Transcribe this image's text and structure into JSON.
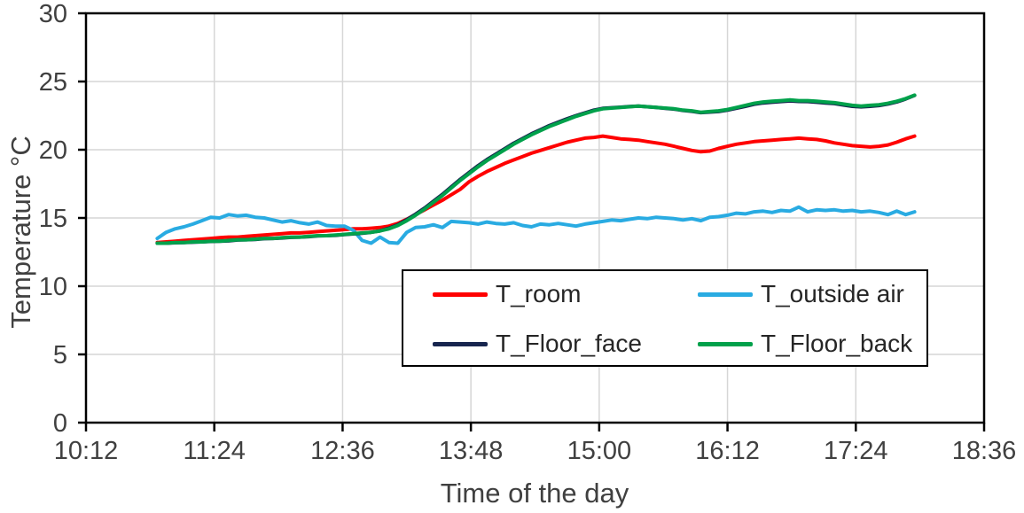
{
  "chart_data": {
    "type": "line",
    "title": "",
    "xlabel": "Time of the day",
    "ylabel": "Temperature °C",
    "ylim": [
      0,
      30
    ],
    "xlim": [
      "10:12",
      "18:36"
    ],
    "grid": true,
    "legend_position": "inside-bottom-center",
    "axis_color": "#000000",
    "grid_color": "#D6D6D6",
    "tick_label_color": "#404040",
    "x_ticks": [
      "10:12",
      "11:24",
      "12:36",
      "13:48",
      "15:00",
      "16:12",
      "17:24",
      "18:36"
    ],
    "y_ticks": [
      0,
      5,
      10,
      15,
      20,
      25,
      30
    ],
    "x": [
      "10:52",
      "10:57",
      "11:02",
      "11:07",
      "11:12",
      "11:17",
      "11:22",
      "11:27",
      "11:32",
      "11:37",
      "11:42",
      "11:47",
      "11:52",
      "11:57",
      "12:02",
      "12:07",
      "12:12",
      "12:17",
      "12:22",
      "12:27",
      "12:32",
      "12:37",
      "12:42",
      "12:47",
      "12:52",
      "12:57",
      "13:02",
      "13:07",
      "13:12",
      "13:17",
      "13:22",
      "13:27",
      "13:32",
      "13:37",
      "13:42",
      "13:47",
      "13:52",
      "13:57",
      "14:02",
      "14:07",
      "14:12",
      "14:17",
      "14:22",
      "14:27",
      "14:32",
      "14:37",
      "14:42",
      "14:47",
      "14:52",
      "14:57",
      "15:02",
      "15:07",
      "15:12",
      "15:17",
      "15:22",
      "15:27",
      "15:32",
      "15:37",
      "15:42",
      "15:47",
      "15:52",
      "15:57",
      "16:02",
      "16:07",
      "16:12",
      "16:17",
      "16:22",
      "16:27",
      "16:32",
      "16:37",
      "16:42",
      "16:47",
      "16:52",
      "16:57",
      "17:02",
      "17:07",
      "17:12",
      "17:17",
      "17:22",
      "17:27",
      "17:32",
      "17:37",
      "17:42",
      "17:47",
      "17:52",
      "17:57"
    ],
    "series": [
      {
        "name": "T_room",
        "color": "#FF0000",
        "values": [
          13.2,
          13.25,
          13.3,
          13.35,
          13.4,
          13.45,
          13.5,
          13.55,
          13.6,
          13.6,
          13.65,
          13.7,
          13.75,
          13.8,
          13.85,
          13.9,
          13.9,
          13.95,
          14.0,
          14.05,
          14.1,
          14.15,
          14.2,
          14.2,
          14.25,
          14.3,
          14.4,
          14.6,
          14.9,
          15.25,
          15.6,
          15.95,
          16.3,
          16.7,
          17.1,
          17.65,
          18.05,
          18.4,
          18.7,
          19.0,
          19.25,
          19.5,
          19.75,
          19.95,
          20.15,
          20.35,
          20.55,
          20.7,
          20.85,
          20.9,
          21.0,
          20.9,
          20.8,
          20.75,
          20.7,
          20.6,
          20.5,
          20.4,
          20.25,
          20.1,
          19.95,
          19.85,
          19.9,
          20.1,
          20.25,
          20.4,
          20.5,
          20.6,
          20.65,
          20.7,
          20.75,
          20.8,
          20.85,
          20.8,
          20.75,
          20.65,
          20.5,
          20.4,
          20.3,
          20.25,
          20.2,
          20.25,
          20.35,
          20.55,
          20.8,
          21.0
        ]
      },
      {
        "name": "T_outside air",
        "color": "#29ABE2",
        "values": [
          13.5,
          13.95,
          14.2,
          14.35,
          14.55,
          14.8,
          15.05,
          15.0,
          15.25,
          15.15,
          15.2,
          15.05,
          15.0,
          14.85,
          14.7,
          14.8,
          14.65,
          14.55,
          14.7,
          14.45,
          14.4,
          14.4,
          14.1,
          13.35,
          13.15,
          13.6,
          13.2,
          13.15,
          13.95,
          14.3,
          14.35,
          14.5,
          14.3,
          14.75,
          14.7,
          14.65,
          14.55,
          14.7,
          14.6,
          14.55,
          14.65,
          14.45,
          14.35,
          14.55,
          14.5,
          14.6,
          14.5,
          14.4,
          14.55,
          14.65,
          14.75,
          14.85,
          14.8,
          14.9,
          15.0,
          14.95,
          15.05,
          15.0,
          14.95,
          14.85,
          14.95,
          14.8,
          15.05,
          15.1,
          15.2,
          15.35,
          15.3,
          15.45,
          15.5,
          15.4,
          15.55,
          15.5,
          15.8,
          15.45,
          15.6,
          15.55,
          15.6,
          15.5,
          15.55,
          15.45,
          15.5,
          15.4,
          15.25,
          15.5,
          15.25,
          15.45
        ]
      },
      {
        "name": "T_Floor_face",
        "color": "#17254E",
        "values": [
          13.15,
          13.15,
          13.18,
          13.2,
          13.22,
          13.25,
          13.28,
          13.3,
          13.32,
          13.38,
          13.4,
          13.43,
          13.48,
          13.5,
          13.53,
          13.58,
          13.6,
          13.63,
          13.68,
          13.7,
          13.73,
          13.78,
          13.83,
          13.88,
          13.95,
          14.05,
          14.25,
          14.5,
          14.87,
          15.28,
          15.73,
          16.23,
          16.73,
          17.28,
          17.83,
          18.33,
          18.83,
          19.28,
          19.68,
          20.08,
          20.48,
          20.82,
          21.17,
          21.47,
          21.77,
          22.02,
          22.27,
          22.5,
          22.7,
          22.9,
          23.03,
          23.08,
          23.12,
          23.17,
          23.2,
          23.15,
          23.1,
          23.03,
          22.98,
          22.88,
          22.82,
          22.72,
          22.76,
          22.8,
          22.9,
          23.04,
          23.18,
          23.33,
          23.43,
          23.48,
          23.53,
          23.58,
          23.54,
          23.53,
          23.48,
          23.43,
          23.38,
          23.28,
          23.18,
          23.14,
          23.18,
          23.24,
          23.35,
          23.5,
          23.72,
          23.98
        ]
      },
      {
        "name": "T_Floor_back",
        "color": "#00A14B",
        "values": [
          13.15,
          13.15,
          13.2,
          13.2,
          13.25,
          13.25,
          13.3,
          13.3,
          13.35,
          13.4,
          13.4,
          13.45,
          13.5,
          13.5,
          13.55,
          13.6,
          13.6,
          13.65,
          13.7,
          13.7,
          13.75,
          13.8,
          13.85,
          13.9,
          13.95,
          14.05,
          14.2,
          14.45,
          14.8,
          15.2,
          15.65,
          16.15,
          16.65,
          17.2,
          17.75,
          18.25,
          18.75,
          19.2,
          19.6,
          20.0,
          20.4,
          20.75,
          21.1,
          21.4,
          21.7,
          21.95,
          22.2,
          22.45,
          22.65,
          22.85,
          23.0,
          23.05,
          23.1,
          23.15,
          23.2,
          23.15,
          23.1,
          23.05,
          23.0,
          22.9,
          22.85,
          22.75,
          22.8,
          22.85,
          22.95,
          23.1,
          23.25,
          23.4,
          23.5,
          23.55,
          23.6,
          23.65,
          23.6,
          23.6,
          23.55,
          23.5,
          23.45,
          23.35,
          23.25,
          23.2,
          23.25,
          23.3,
          23.4,
          23.55,
          23.75,
          24.0
        ]
      }
    ]
  }
}
